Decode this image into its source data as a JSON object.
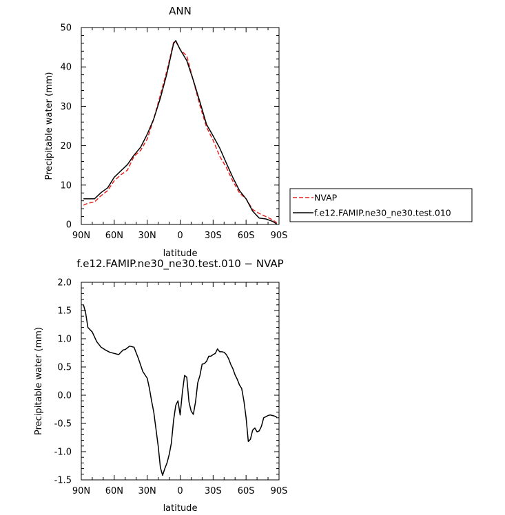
{
  "chart_data": [
    {
      "type": "line",
      "title": "ANN",
      "xlabel": "latitude",
      "ylabel": "Precipitable water (mm)",
      "xlim": [
        90,
        -90
      ],
      "ylim": [
        0,
        50
      ],
      "x_tick_labels": [
        "90N",
        "60N",
        "30N",
        "0",
        "30S",
        "60S",
        "90S"
      ],
      "y_tick_labels": [
        "0",
        "10",
        "20",
        "30",
        "40",
        "50"
      ],
      "legend_position": "outside-right",
      "series": [
        {
          "name": "NVAP",
          "color": "#e8211d",
          "style": "dashed",
          "x": [
            88,
            84,
            78,
            72,
            66,
            60,
            54,
            48,
            42,
            36,
            30,
            24,
            18,
            12,
            6,
            4,
            0,
            -6,
            -12,
            -18,
            -24,
            -30,
            -36,
            -42,
            -48,
            -54,
            -60,
            -66,
            -72,
            -78,
            -84,
            -88
          ],
          "y": [
            4.9,
            5.4,
            5.7,
            7.3,
            8.6,
            11.1,
            12.6,
            13.8,
            17.3,
            18.8,
            21.7,
            26.8,
            32.9,
            39.1,
            46.2,
            46.5,
            44.4,
            42.8,
            36.5,
            30.2,
            24.7,
            21.4,
            17.3,
            14.5,
            11.0,
            8.0,
            6.5,
            3.8,
            2.8,
            2.0,
            1.2,
            0.4
          ]
        },
        {
          "name": "f.e12.FAMIP.ne30_ne30.test.010",
          "color": "#000000",
          "style": "solid",
          "x": [
            88,
            84,
            78,
            72,
            66,
            60,
            54,
            48,
            42,
            36,
            30,
            24,
            18,
            12,
            6,
            4,
            0,
            -6,
            -12,
            -18,
            -24,
            -30,
            -36,
            -42,
            -48,
            -54,
            -60,
            -66,
            -72,
            -78,
            -84,
            -88
          ],
          "y": [
            6.5,
            6.5,
            6.5,
            8.1,
            9.3,
            12.0,
            13.6,
            15.2,
            17.6,
            19.6,
            22.9,
            26.8,
            32.1,
            38.4,
            45.9,
            46.7,
            44.4,
            41.6,
            36.6,
            31.1,
            25.4,
            22.5,
            19.4,
            15.6,
            11.9,
            8.6,
            6.5,
            3.4,
            1.6,
            1.4,
            0.8,
            0.1
          ]
        }
      ]
    },
    {
      "type": "line",
      "title": "f.e12.FAMIP.ne30_ne30.test.010 − NVAP",
      "xlabel": "latitude",
      "ylabel": "Precipitable water (mm)",
      "xlim": [
        90,
        -90
      ],
      "ylim": [
        -1.5,
        2.0
      ],
      "x_tick_labels": [
        "90N",
        "60N",
        "30N",
        "0",
        "30S",
        "60S",
        "90S"
      ],
      "y_tick_labels": [
        "-1.5",
        "-1.0",
        "-0.5",
        "0.0",
        "0.5",
        "1.0",
        "1.5",
        "2.0"
      ],
      "series": [
        {
          "color": "#000000",
          "style": "solid",
          "x": [
            88,
            86,
            84,
            80,
            76,
            72,
            68,
            64,
            60,
            56,
            52,
            50,
            46,
            42,
            38,
            34,
            30,
            28,
            26,
            24,
            22,
            20,
            18,
            16,
            14,
            12,
            10,
            8,
            6,
            4,
            2,
            0,
            -2,
            -4,
            -6,
            -8,
            -10,
            -12,
            -14,
            -16,
            -18,
            -20,
            -22,
            -24,
            -26,
            -28,
            -30,
            -32,
            -34,
            -36,
            -38,
            -40,
            -42,
            -44,
            -46,
            -48,
            -50,
            -52,
            -54,
            -56,
            -58,
            -60,
            -62,
            -64,
            -66,
            -68,
            -70,
            -72,
            -74,
            -76,
            -78,
            -80,
            -82,
            -84,
            -86,
            -88
          ],
          "y": [
            1.6,
            1.45,
            1.2,
            1.12,
            0.95,
            0.85,
            0.8,
            0.76,
            0.74,
            0.72,
            0.8,
            0.81,
            0.87,
            0.85,
            0.65,
            0.42,
            0.3,
            0.12,
            -0.1,
            -0.3,
            -0.6,
            -0.9,
            -1.28,
            -1.42,
            -1.3,
            -1.2,
            -1.05,
            -0.85,
            -0.45,
            -0.18,
            -0.1,
            -0.35,
            0.05,
            0.35,
            0.32,
            -0.12,
            -0.28,
            -0.34,
            -0.12,
            0.22,
            0.35,
            0.55,
            0.56,
            0.6,
            0.69,
            0.69,
            0.72,
            0.74,
            0.82,
            0.77,
            0.77,
            0.76,
            0.72,
            0.65,
            0.55,
            0.47,
            0.36,
            0.28,
            0.18,
            0.12,
            -0.1,
            -0.4,
            -0.82,
            -0.78,
            -0.62,
            -0.58,
            -0.65,
            -0.63,
            -0.55,
            -0.4,
            -0.38,
            -0.36,
            -0.35,
            -0.36,
            -0.37,
            -0.39
          ]
        }
      ]
    }
  ]
}
